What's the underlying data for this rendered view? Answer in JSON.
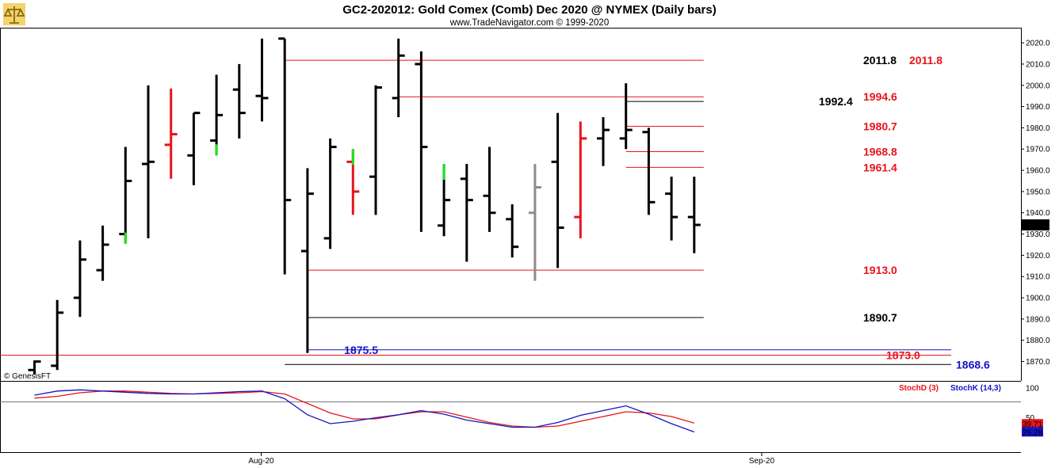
{
  "title": "GC2-202012:  Gold Comex (Comb) Dec 2020 @ NYMEX  (Daily bars)",
  "subtitle": "www.TradeNavigator.com © 1999-2020",
  "watermark": "© GenesisFT",
  "logo_icon": "gold-scales-icon",
  "colors": {
    "up": "#000000",
    "red": "#e8141b",
    "green": "#19e619",
    "gray": "#8c8c8c",
    "blue": "#1414c8",
    "stochD": "#e8141b",
    "stochK": "#1414c8"
  },
  "chart_data": [
    {
      "type": "ohlc",
      "ylim": [
        1862,
        2026
      ],
      "y_ticks": [
        "2020.0",
        "2010.0",
        "2000.0",
        "1990.0",
        "1980.0",
        "1970.0",
        "1960.0",
        "1950.0",
        "1940.0",
        "1930.0",
        "1920.0",
        "1910.0",
        "1900.0",
        "1890.0",
        "1880.0",
        "1870.0"
      ],
      "x_labels": [
        {
          "label": "Aug-20",
          "bar_index": 10
        },
        {
          "label": "Sep-20",
          "bar_index": 32
        }
      ],
      "last_price": "1934.3",
      "bars": [
        {
          "o": 1866.0,
          "h": 1870.5,
          "l": 1864.0,
          "c": 1870.0,
          "color": "black"
        },
        {
          "o": 1868.0,
          "h": 1899.0,
          "l": 1866.0,
          "c": 1893.0,
          "color": "black"
        },
        {
          "o": 1900.0,
          "h": 1927.0,
          "l": 1891.0,
          "c": 1918.0,
          "color": "black"
        },
        {
          "o": 1913.0,
          "h": 1934.0,
          "l": 1908.0,
          "c": 1925.0,
          "color": "black"
        },
        {
          "o": 1930.0,
          "h": 1971.0,
          "l": 1925.5,
          "c": 1955.0,
          "color": "black",
          "low_tick": "green"
        },
        {
          "o": 1963.0,
          "h": 2000.0,
          "l": 1928.0,
          "c": 1964.0,
          "color": "black"
        },
        {
          "o": 1972.0,
          "h": 1998.5,
          "l": 1956.0,
          "c": 1977.0,
          "color": "red"
        },
        {
          "o": 1967.0,
          "h": 1987.0,
          "l": 1953.0,
          "c": 1987.0,
          "color": "black"
        },
        {
          "o": 1974.0,
          "h": 2005.0,
          "l": 1967.0,
          "c": 1986.0,
          "color": "black",
          "low_tick": "green"
        },
        {
          "o": 1998.0,
          "h": 2010.0,
          "l": 1975.0,
          "c": 1987.0,
          "color": "black"
        },
        {
          "o": 1995.0,
          "h": 2022.0,
          "l": 1983.0,
          "c": 1994.0,
          "color": "black"
        },
        {
          "o": 2022.0,
          "h": 2022.0,
          "l": 1911.0,
          "c": 1946.0,
          "color": "black"
        },
        {
          "o": 1922.0,
          "h": 1961.0,
          "l": 1874.0,
          "c": 1949.0,
          "color": "black"
        },
        {
          "o": 1928.0,
          "h": 1975.0,
          "l": 1923.0,
          "c": 1971.0,
          "color": "black"
        },
        {
          "o": 1964.0,
          "h": 1970.0,
          "l": 1939.0,
          "c": 1950.0,
          "color": "red",
          "high_tick": "green"
        },
        {
          "o": 1957.0,
          "h": 2000.0,
          "l": 1939.0,
          "c": 1999.0,
          "color": "black"
        },
        {
          "o": 1994.0,
          "h": 2022.0,
          "l": 1985.0,
          "c": 2014.0,
          "color": "black"
        },
        {
          "o": 2010.0,
          "h": 2016.0,
          "l": 1931.0,
          "c": 1971.0,
          "color": "black"
        },
        {
          "o": 1934.0,
          "h": 1963.0,
          "l": 1929.0,
          "c": 1946.0,
          "color": "black",
          "high_tick": "green"
        },
        {
          "o": 1956.0,
          "h": 1963.0,
          "l": 1917.0,
          "c": 1946.0,
          "color": "black"
        },
        {
          "o": 1948.0,
          "h": 1971.0,
          "l": 1931.0,
          "c": 1940.0,
          "color": "black"
        },
        {
          "o": 1937.0,
          "h": 1944.0,
          "l": 1919.0,
          "c": 1924.0,
          "color": "black"
        },
        {
          "o": 1940.0,
          "h": 1963.0,
          "l": 1908.0,
          "c": 1952.0,
          "color": "gray"
        },
        {
          "o": 1964.0,
          "h": 1987.0,
          "l": 1914.0,
          "c": 1933.0,
          "color": "black"
        },
        {
          "o": 1938.0,
          "h": 1983.0,
          "l": 1928.0,
          "c": 1975.0,
          "color": "red"
        },
        {
          "o": 1975.0,
          "h": 1985.0,
          "l": 1962.0,
          "c": 1979.0,
          "color": "black"
        },
        {
          "o": 1975.0,
          "h": 2001.0,
          "l": 1970.0,
          "c": 1979.0,
          "color": "black"
        },
        {
          "o": 1978.0,
          "h": 1980.0,
          "l": 1939.0,
          "c": 1945.0,
          "color": "black"
        },
        {
          "o": 1949.0,
          "h": 1957.0,
          "l": 1927.0,
          "c": 1938.0,
          "color": "black"
        },
        {
          "o": 1938.0,
          "h": 1957.0,
          "l": 1921.0,
          "c": 1934.3,
          "color": "black"
        }
      ],
      "levels": [
        {
          "label": "2011.8",
          "value": 2011.8,
          "line_color": "red",
          "label_color": "black",
          "from_bar": 11,
          "to_bar": 29,
          "label_side": "right"
        },
        {
          "label": "2011.8",
          "value": 2011.8,
          "line_color": "red",
          "label_color": "red",
          "from_bar": 11,
          "to_bar": 29,
          "label_side": "far"
        },
        {
          "label": "1994.6",
          "value": 1994.6,
          "line_color": "red",
          "label_color": "red",
          "from_bar": 16,
          "to_bar": 29,
          "label_side": "right"
        },
        {
          "label": "1992.4",
          "value": 1992.4,
          "line_color": "black",
          "label_color": "black",
          "from_bar": 26,
          "to_bar": 29,
          "label_side": "inner"
        },
        {
          "label": "1980.7",
          "value": 1980.7,
          "line_color": "red",
          "label_color": "red",
          "from_bar": 26,
          "to_bar": 29,
          "label_side": "right"
        },
        {
          "label": "1968.8",
          "value": 1968.8,
          "line_color": "red",
          "label_color": "red",
          "from_bar": 26,
          "to_bar": 29,
          "label_side": "right"
        },
        {
          "label": "1961.4",
          "value": 1961.4,
          "line_color": "red",
          "label_color": "red",
          "from_bar": 26,
          "to_bar": 29,
          "label_side": "right"
        },
        {
          "label": "1913.0",
          "value": 1913.0,
          "line_color": "red",
          "label_color": "red",
          "from_bar": 12,
          "to_bar": 29,
          "label_side": "right"
        },
        {
          "label": "1890.7",
          "value": 1890.7,
          "line_color": "black",
          "label_color": "black",
          "from_bar": 12,
          "to_bar": 29,
          "label_side": "right"
        },
        {
          "label": "1875.5",
          "value": 1875.5,
          "line_color": "blue",
          "label_color": "blue",
          "from_bar": 12,
          "to_bar": 33,
          "label_side": "left"
        },
        {
          "label": "1873.0",
          "value": 1873.0,
          "line_color": "red",
          "label_color": "red",
          "from_bar": -2,
          "to_bar": 33,
          "label_side": "mid"
        },
        {
          "label": "1868.6",
          "value": 1868.6,
          "line_color": "black",
          "label_color": "blue",
          "from_bar": 11,
          "to_bar": 34,
          "label_side": "end"
        }
      ]
    },
    {
      "type": "line",
      "ylim": [
        0,
        100
      ],
      "y_ticks": [
        "100",
        "50"
      ],
      "series": [
        {
          "name": "StochD (3)",
          "color": "red",
          "values": [
            83,
            86,
            92,
            95,
            95,
            93,
            91,
            90,
            91,
            92,
            94,
            90,
            74,
            58,
            48,
            48,
            55,
            60,
            60,
            51,
            42,
            36,
            34,
            36,
            44,
            52,
            60,
            58,
            52,
            41
          ]
        },
        {
          "name": "StochK (14,3)",
          "color": "blue",
          "values": [
            88,
            95,
            97,
            95,
            93,
            91,
            90,
            90,
            92,
            94,
            95,
            82,
            55,
            40,
            44,
            50,
            55,
            62,
            56,
            46,
            40,
            34,
            34,
            42,
            54,
            62,
            70,
            56,
            40,
            26
          ]
        }
      ],
      "last_values": [
        "39.71",
        "26.28"
      ]
    }
  ]
}
